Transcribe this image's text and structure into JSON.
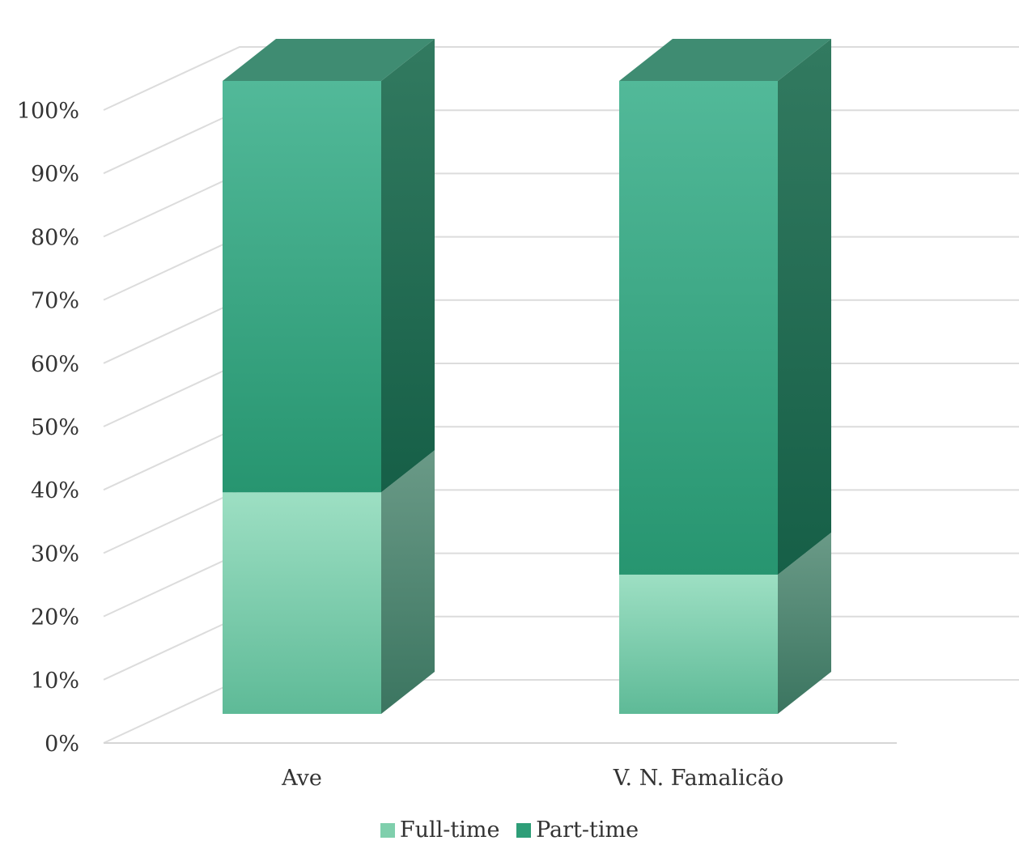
{
  "chart_data": {
    "type": "bar",
    "stacked": true,
    "three_d": true,
    "categories": [
      "Ave",
      "V. N. Famalicão"
    ],
    "series": [
      {
        "name": "Full-time",
        "values": [
          35,
          22
        ]
      },
      {
        "name": "Part-time",
        "values": [
          65,
          78
        ]
      }
    ],
    "ylim": [
      0,
      100
    ],
    "y_ticks": [
      "0%",
      "10%",
      "20%",
      "30%",
      "40%",
      "50%",
      "60%",
      "70%",
      "80%",
      "90%",
      "100%"
    ],
    "grid": true,
    "legend_position": "bottom",
    "colors": {
      "Full-time": "#7fcfac",
      "Part-time": "#2e9e78"
    }
  }
}
